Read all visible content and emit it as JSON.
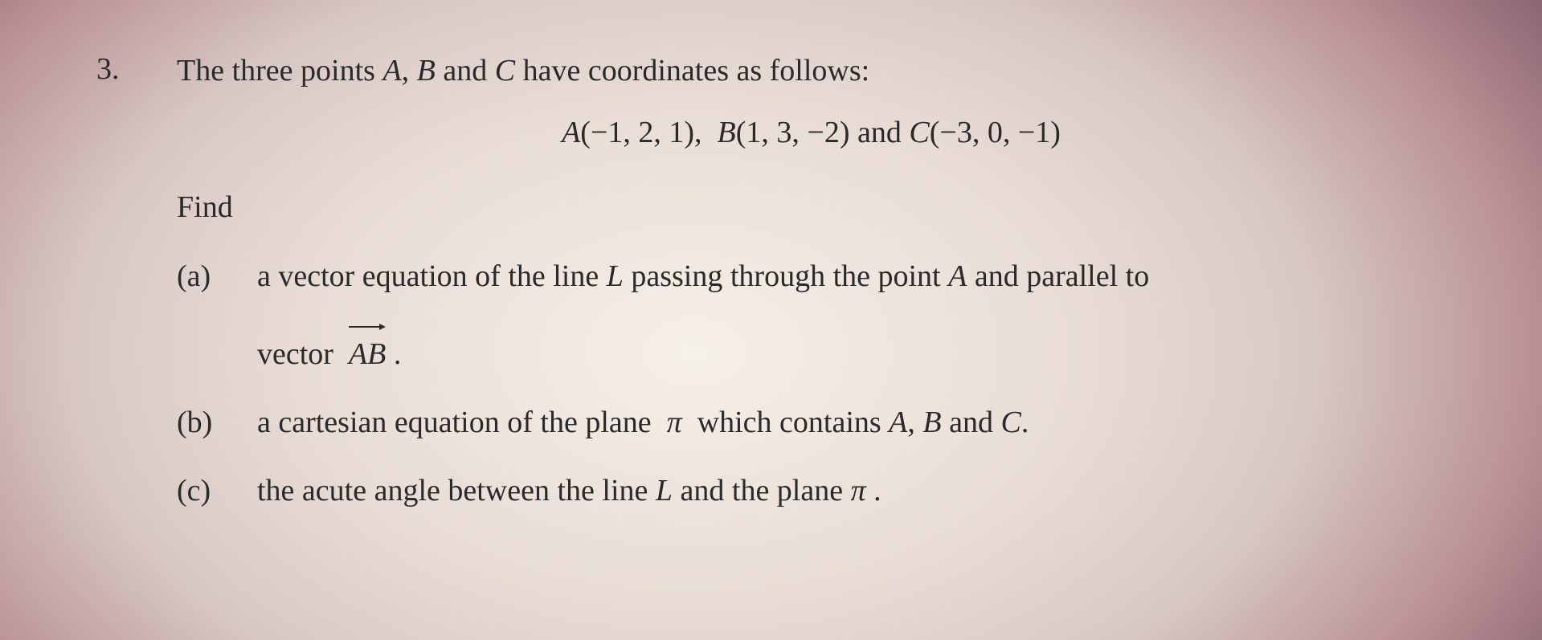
{
  "question": {
    "number": "3.",
    "intro_prefix": "The three points ",
    "intro_A": "A",
    "intro_sep1": ", ",
    "intro_B": "B",
    "intro_sep2": " and ",
    "intro_C": "C",
    "intro_suffix": " have coordinates as follows:",
    "coords": {
      "A_label": "A",
      "A_vals": "(−1, 2, 1)",
      "sep1": ",  ",
      "B_label": "B",
      "B_vals": "(1, 3, −2)",
      "mid": " and ",
      "C_label": "C",
      "C_vals": "(−3, 0, −1)"
    },
    "find": "Find",
    "parts": {
      "a": {
        "label": "(a)",
        "t1": "a vector equation of the line ",
        "L": "L",
        "t2": " passing through the point ",
        "A": "A",
        "t3": " and parallel to",
        "t4": "vector  ",
        "AB": "AB",
        "t5": " ."
      },
      "b": {
        "label": "(b)",
        "t1": "a cartesian equation of the plane  ",
        "pi": "π",
        "t2": "  which contains ",
        "A": "A",
        "sep1": ", ",
        "B": "B",
        "sep2": " and ",
        "C": "C",
        "t3": "."
      },
      "c": {
        "label": "(c)",
        "t1": "the acute angle between the line ",
        "L": "L",
        "t2": " and the plane ",
        "pi": "π",
        "t3": " ."
      }
    }
  }
}
